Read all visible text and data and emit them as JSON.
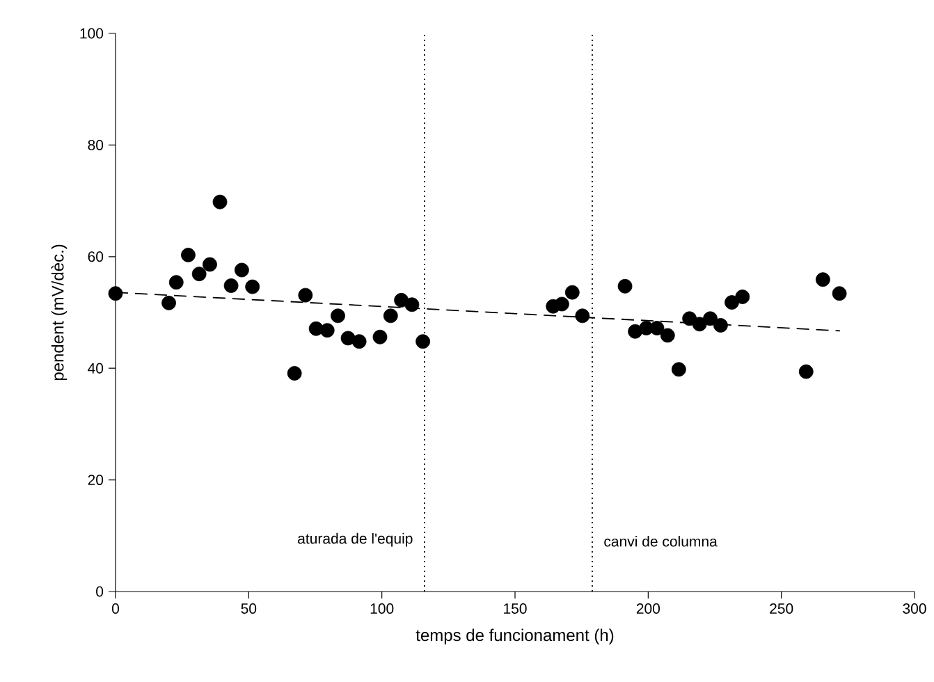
{
  "chart_data": {
    "type": "scatter",
    "xlabel": "temps de funcionament (h)",
    "ylabel": "pendent (mV/dèc.)",
    "xlim": [
      0,
      300
    ],
    "ylim": [
      0,
      100
    ],
    "xticks": [
      0,
      50,
      100,
      150,
      200,
      250,
      300
    ],
    "yticks": [
      0,
      20,
      40,
      60,
      80,
      100
    ],
    "grid": false,
    "marker": "circle",
    "series": [
      {
        "color": "#000000",
        "x": [
          0,
          20.0,
          22.8,
          27.3,
          31.4,
          35.4,
          39.2,
          43.4,
          47.4,
          51.4,
          67.2,
          71.3,
          75.3,
          79.5,
          83.5,
          87.3,
          91.5,
          99.3,
          103.3,
          107.3,
          111.3,
          115.4,
          164.3,
          167.6,
          171.5,
          175.3,
          191.3,
          195.1,
          199.3,
          203.3,
          207.3,
          211.5,
          215.5,
          219.3,
          223.3,
          227.2,
          231.4,
          235.4,
          259.3,
          265.6,
          271.8
        ],
        "values": [
          53.4,
          51.7,
          55.4,
          60.3,
          56.9,
          58.6,
          69.8,
          54.8,
          57.6,
          54.6,
          39.1,
          53.1,
          47.1,
          46.8,
          49.4,
          45.4,
          44.8,
          45.6,
          49.4,
          52.2,
          51.4,
          44.8,
          51.1,
          51.5,
          53.6,
          49.4,
          54.7,
          46.6,
          47.2,
          47.2,
          45.9,
          39.8,
          48.9,
          47.9,
          48.9,
          47.7,
          51.8,
          52.8,
          39.4,
          55.9,
          53.4
        ]
      },
      {
        "type": "line",
        "color": "#000000",
        "line_style": "dashed",
        "marker": "none",
        "x": [
          0,
          272
        ],
        "values": [
          53.6,
          46.7
        ]
      }
    ],
    "ref_lines": [
      {
        "axis": "x",
        "value": 116,
        "label": "aturada de l'equip",
        "line_style": "dotted",
        "color": "#000000"
      },
      {
        "axis": "x",
        "value": 179,
        "label": "canvi de columna",
        "line_style": "dotted",
        "color": "#000000"
      }
    ]
  }
}
